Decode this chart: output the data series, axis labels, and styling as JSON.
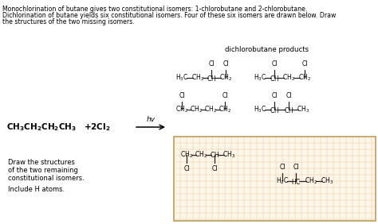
{
  "title_line1": "Monochlorination of butane gives two constitutional isomers: 1-chlorobutane and 2-chlorobutane.",
  "title_line2": "Dichlorination of butane yields six constitutional isomers. Four of these six isomers are drawn below. Draw",
  "title_line3": "the structures of the two missing isomers.",
  "dichlorobutane_label": "dichlorobutane products",
  "draw_text_line1": "Draw the structures",
  "draw_text_line2": "of the two remaining",
  "draw_text_line3": "constitutional isomers.",
  "draw_text_line4": "Include H atoms.",
  "background": "#ffffff",
  "bond_color": "#222222",
  "grid_color": "#e8c8a0",
  "box_edge_color": "#c8a870",
  "box_face_color": "#fdf5e8"
}
